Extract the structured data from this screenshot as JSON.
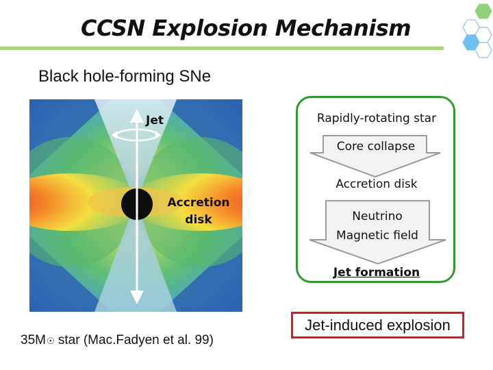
{
  "slide": {
    "title": "CCSN Explosion Mechanism",
    "subtitle": "Black hole-forming SNe"
  },
  "simulation": {
    "jet_label": "Jet",
    "disk_label_line1": "Accretion",
    "disk_label_line2": "disk",
    "caption_prefix": "35M",
    "caption_sun": "☉",
    "caption_suffix": " star (Mac.Fadyen et al.  99)"
  },
  "flow": {
    "step1": "Rapidly-rotating star",
    "arrow1": "Core collapse",
    "step2": "Accretion disk",
    "arrow2_line1": "Neutrino",
    "arrow2_line2": "Magnetic field",
    "step3": "Jet formation"
  },
  "result": {
    "label": "Jet-induced explosion"
  },
  "colors": {
    "accent_green": "#a8d37a",
    "flow_border": "#2e9a2e",
    "result_border": "#e01a1a",
    "hex_green": "#8fd07a",
    "hex_blue": "#6fbff0"
  }
}
